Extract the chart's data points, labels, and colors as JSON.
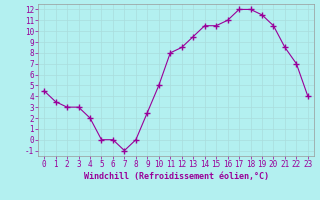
{
  "x": [
    0,
    1,
    2,
    3,
    4,
    5,
    6,
    7,
    8,
    9,
    10,
    11,
    12,
    13,
    14,
    15,
    16,
    17,
    18,
    19,
    20,
    21,
    22,
    23
  ],
  "y": [
    4.5,
    3.5,
    3.0,
    3.0,
    2.0,
    0.0,
    0.0,
    -1.0,
    0.0,
    2.5,
    5.0,
    8.0,
    8.5,
    9.5,
    10.5,
    10.5,
    11.0,
    12.0,
    12.0,
    11.5,
    10.5,
    8.5,
    7.0,
    4.0
  ],
  "line_color": "#990099",
  "marker": "+",
  "marker_size": 4,
  "background_color": "#b3f0f0",
  "grid_color": "#aadddd",
  "xlabel": "Windchill (Refroidissement éolien,°C)",
  "xlabel_color": "#990099",
  "tick_color": "#990099",
  "label_color": "#990099",
  "spine_color": "#999999",
  "ylim": [
    -1.5,
    12.5
  ],
  "xlim": [
    -0.5,
    23.5
  ],
  "yticks": [
    -1,
    0,
    1,
    2,
    3,
    4,
    5,
    6,
    7,
    8,
    9,
    10,
    11,
    12
  ],
  "xticks": [
    0,
    1,
    2,
    3,
    4,
    5,
    6,
    7,
    8,
    9,
    10,
    11,
    12,
    13,
    14,
    15,
    16,
    17,
    18,
    19,
    20,
    21,
    22,
    23
  ],
  "tick_fontsize": 5.5,
  "xlabel_fontsize": 6.0
}
